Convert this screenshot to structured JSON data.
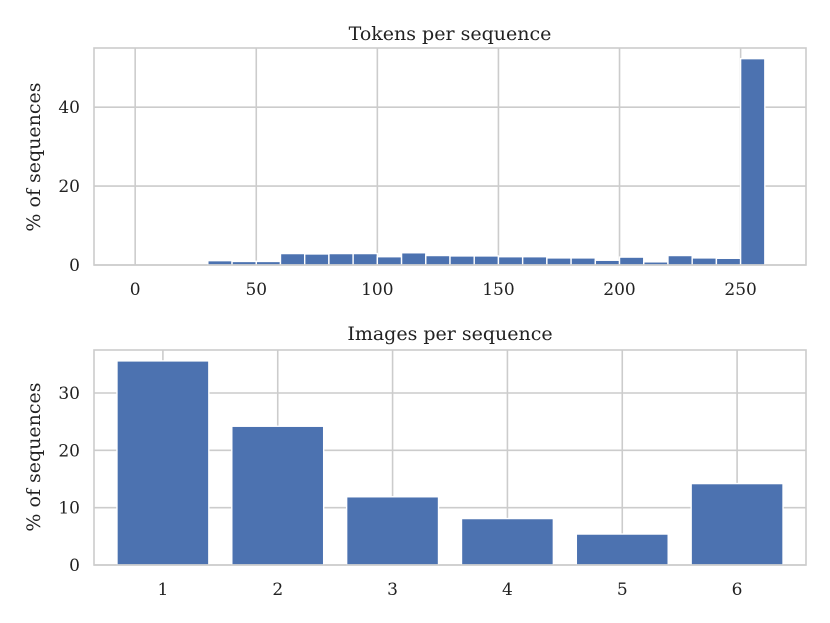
{
  "chart_data": [
    {
      "type": "bar",
      "title": "Tokens per sequence",
      "ylabel": "% of sequences",
      "xlabel": "",
      "grid": true,
      "xlim": [
        -17,
        277
      ],
      "ylim": [
        0,
        55
      ],
      "xticks": [
        0,
        50,
        100,
        150,
        200,
        250
      ],
      "yticks": [
        0,
        20,
        40
      ],
      "bin_width": 10,
      "bins": [
        {
          "x": 35,
          "value": 1.1
        },
        {
          "x": 45,
          "value": 0.9
        },
        {
          "x": 55,
          "value": 0.9
        },
        {
          "x": 55.5,
          "value": 0.9
        },
        {
          "x": 65,
          "value": 2.9
        },
        {
          "x": 75,
          "value": 2.8
        },
        {
          "x": 85,
          "value": 2.9
        },
        {
          "x": 95,
          "value": 2.9
        },
        {
          "x": 105,
          "value": 2.1
        },
        {
          "x": 115,
          "value": 3.1
        },
        {
          "x": 125,
          "value": 2.4
        },
        {
          "x": 135,
          "value": 2.3
        },
        {
          "x": 145,
          "value": 2.3
        },
        {
          "x": 155,
          "value": 2.1
        },
        {
          "x": 165,
          "value": 2.1
        },
        {
          "x": 175,
          "value": 1.8
        },
        {
          "x": 185,
          "value": 1.8
        },
        {
          "x": 195,
          "value": 1.2
        },
        {
          "x": 205,
          "value": 2.0
        },
        {
          "x": 215,
          "value": 0.8
        },
        {
          "x": 225,
          "value": 2.4
        },
        {
          "x": 235,
          "value": 1.8
        },
        {
          "x": 245,
          "value": 1.7
        },
        {
          "x": 255,
          "value": 52.3
        }
      ]
    },
    {
      "type": "bar",
      "title": "Images per sequence",
      "ylabel": "% of sequences",
      "xlabel": "",
      "grid": true,
      "categories": [
        "1",
        "2",
        "3",
        "4",
        "5",
        "6"
      ],
      "values": [
        35.6,
        24.2,
        11.9,
        8.1,
        5.4,
        14.2
      ],
      "ylim": [
        0,
        37.5
      ],
      "yticks": [
        0,
        10,
        20,
        30
      ]
    }
  ],
  "colors": {
    "bar": "#4c72b0",
    "grid": "#cccccc",
    "background": "#ffffff"
  }
}
